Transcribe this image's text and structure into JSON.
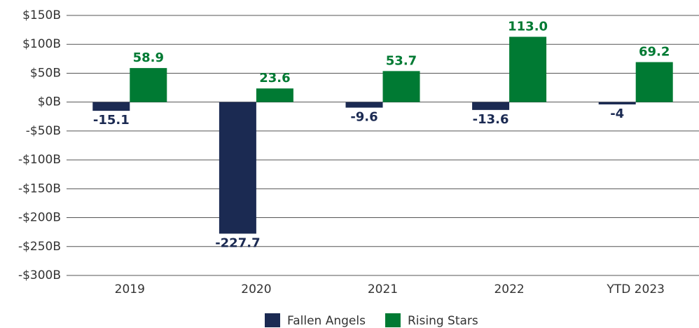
{
  "chart_data": {
    "type": "bar",
    "categories": [
      "2019",
      "2020",
      "2021",
      "2022",
      "YTD 2023"
    ],
    "series": [
      {
        "name": "Fallen Angels",
        "color": "#1b2a52",
        "values": [
          -15.1,
          -227.7,
          -9.6,
          -13.6,
          -4
        ]
      },
      {
        "name": "Rising Stars",
        "color": "#007a33",
        "values": [
          58.9,
          23.6,
          53.7,
          113.0,
          69.2
        ],
        "value_labels": [
          "58.9",
          "23.6",
          "53.7",
          "113.0",
          "69.2"
        ]
      }
    ],
    "ylim": [
      -300,
      150
    ],
    "yticks": [
      {
        "value": -300,
        "label": "-$300B"
      },
      {
        "value": -250,
        "label": "-$250B"
      },
      {
        "value": -200,
        "label": "-$200B"
      },
      {
        "value": -150,
        "label": "-$150B"
      },
      {
        "value": -100,
        "label": "-$100B"
      },
      {
        "value": -50,
        "label": "-$50B"
      },
      {
        "value": 0,
        "label": "$0B"
      },
      {
        "value": 50,
        "label": "$50B"
      },
      {
        "value": 100,
        "label": "$100B"
      },
      {
        "value": 150,
        "label": "$150B"
      }
    ],
    "grid": true,
    "legend": "bottom"
  }
}
